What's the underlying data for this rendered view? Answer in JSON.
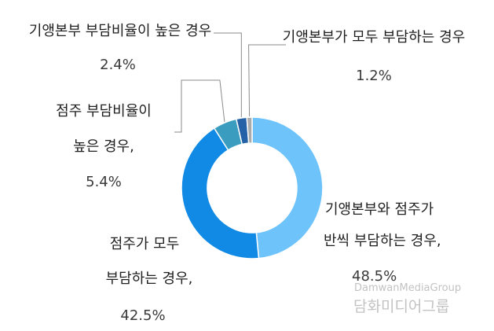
{
  "chart_data": {
    "type": "donut",
    "slices": [
      {
        "label_lines": [
          "기앵본부와 점주가",
          "반씩 부담하는 경우,"
        ],
        "value": 48.5,
        "value_text": "48.5%",
        "color": "#6ec3fb"
      },
      {
        "label_lines": [
          "점주가 모두",
          "부담하는 경우,"
        ],
        "value": 42.5,
        "value_text": "42.5%",
        "color": "#118ae5"
      },
      {
        "label_lines": [
          "점주 부담비율이",
          "높은 경우,"
        ],
        "value": 5.4,
        "value_text": "5.4%",
        "color": "#3a9cbe"
      },
      {
        "label_lines": [
          "기앵본부 부담비율이 높은 경우"
        ],
        "value": 2.4,
        "value_text": "2.4%",
        "color": "#2561a6"
      },
      {
        "label_lines": [
          "기앵본부가 모두 부담하는 경우"
        ],
        "value": 1.2,
        "value_text": "1.2%",
        "color": "#a9aaac"
      }
    ]
  },
  "watermark": {
    "english": "DamwanMediaGroup",
    "korean": "담화미디어그룹"
  }
}
